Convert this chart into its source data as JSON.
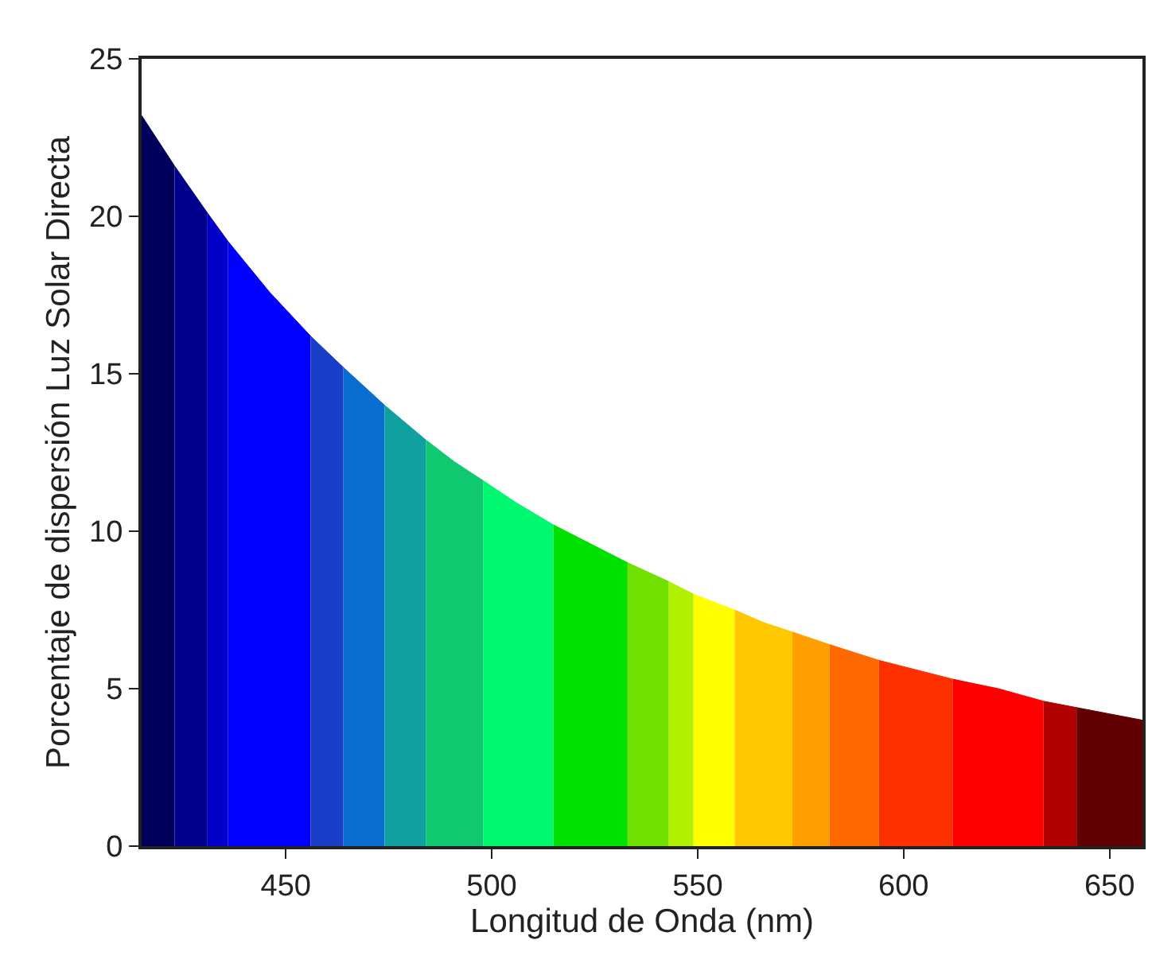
{
  "chart_data": {
    "type": "area",
    "xlabel": "Longitud de Onda (nm)",
    "ylabel": "Porcentaje de dispersión Luz Solar Directa",
    "xlim": [
      415,
      658
    ],
    "xticks": [
      450,
      500,
      550,
      600,
      650
    ],
    "ylim": [
      0,
      25
    ],
    "yticks": [
      0,
      5,
      10,
      15,
      20,
      25
    ],
    "grid": false,
    "series": [
      {
        "color": "#00005a",
        "x": [
          415,
          423
        ],
        "values": [
          23.2,
          21.6
        ]
      },
      {
        "color": "#00008c",
        "x": [
          423,
          431
        ],
        "values": [
          21.6,
          20.1
        ]
      },
      {
        "color": "#0000c8",
        "x": [
          431,
          436
        ],
        "values": [
          20.1,
          19.2
        ]
      },
      {
        "color": "#0000ff",
        "x": [
          436,
          446,
          456
        ],
        "values": [
          19.2,
          17.6,
          16.2
        ]
      },
      {
        "color": "#1a3ec8",
        "x": [
          456,
          464
        ],
        "values": [
          16.2,
          15.2
        ]
      },
      {
        "color": "#0a6ed0",
        "x": [
          464,
          474
        ],
        "values": [
          15.2,
          14.0
        ]
      },
      {
        "color": "#10a0a0",
        "x": [
          474,
          484
        ],
        "values": [
          14.0,
          12.9
        ]
      },
      {
        "color": "#10c870",
        "x": [
          484,
          491,
          498
        ],
        "values": [
          12.9,
          12.2,
          11.6
        ]
      },
      {
        "color": "#00f870",
        "x": [
          498,
          506,
          515
        ],
        "values": [
          11.6,
          10.9,
          10.2
        ]
      },
      {
        "color": "#00e000",
        "x": [
          515,
          524,
          533
        ],
        "values": [
          10.2,
          9.6,
          9.0
        ]
      },
      {
        "color": "#70e000",
        "x": [
          533,
          543
        ],
        "values": [
          9.0,
          8.4
        ]
      },
      {
        "color": "#b0f000",
        "x": [
          543,
          549
        ],
        "values": [
          8.4,
          8.0
        ]
      },
      {
        "color": "#ffff00",
        "x": [
          549,
          559
        ],
        "values": [
          8.0,
          7.5
        ]
      },
      {
        "color": "#ffc800",
        "x": [
          559,
          566,
          573
        ],
        "values": [
          7.5,
          7.1,
          6.8
        ]
      },
      {
        "color": "#ffa000",
        "x": [
          573,
          582
        ],
        "values": [
          6.8,
          6.4
        ]
      },
      {
        "color": "#ff6a00",
        "x": [
          582,
          594
        ],
        "values": [
          6.4,
          5.9
        ]
      },
      {
        "color": "#ff3000",
        "x": [
          594,
          603,
          612
        ],
        "values": [
          5.9,
          5.6,
          5.3
        ]
      },
      {
        "color": "#ff0000",
        "x": [
          612,
          623,
          634
        ],
        "values": [
          5.3,
          5.0,
          4.6
        ]
      },
      {
        "color": "#b00000",
        "x": [
          634,
          642
        ],
        "values": [
          4.6,
          4.4
        ]
      },
      {
        "color": "#600000",
        "x": [
          642,
          650,
          658
        ],
        "values": [
          4.4,
          4.2,
          4.0
        ]
      }
    ]
  }
}
